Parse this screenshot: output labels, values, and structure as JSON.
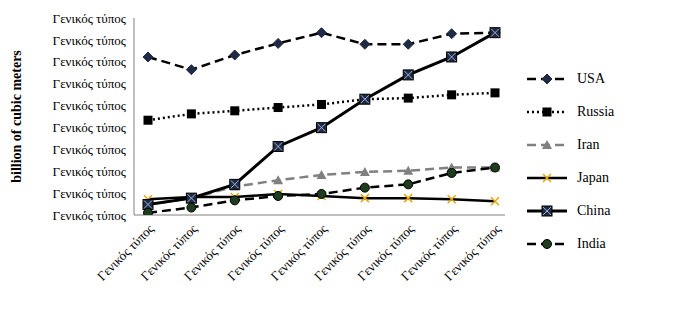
{
  "chart_data": {
    "type": "line",
    "y_label": "billion of cubic meters",
    "categories": [
      "Γενικός τύπος",
      "Γενικός τύπος",
      "Γενικός τύπος",
      "Γενικός τύπος",
      "Γενικός τύπος",
      "Γενικός τύπος",
      "Γενικός τύπος",
      "Γενικός τύπος",
      "Γενικός τύπος"
    ],
    "ylim": [
      0,
      900
    ],
    "yticks": [
      {
        "value": 0,
        "label": "Γενικός τύπος"
      },
      {
        "value": 100,
        "label": "Γενικός τύπος"
      },
      {
        "value": 200,
        "label": "Γενικός τύπος"
      },
      {
        "value": 300,
        "label": "Γενικός τύπος"
      },
      {
        "value": 400,
        "label": "Γενικός τύπος"
      },
      {
        "value": 500,
        "label": "Γενικός τύπος"
      },
      {
        "value": 600,
        "label": "Γενικός τύπος"
      },
      {
        "value": 700,
        "label": "Γενικός τύπος"
      },
      {
        "value": 800,
        "label": "Γενικός τύπος"
      },
      {
        "value": 900,
        "label": "Γενικός τύπος"
      }
    ],
    "grid": false,
    "legend": "right",
    "series": [
      {
        "name": "USA",
        "color": "#000000",
        "marker": "diamond",
        "line_style": "dashed",
        "values": [
          722,
          664,
          731,
          784,
          833,
          780,
          780,
          828,
          833
        ]
      },
      {
        "name": "Russia",
        "color": "#000000",
        "marker": "square",
        "line_style": "dotted",
        "values": [
          433,
          462,
          476,
          491,
          505,
          529,
          534,
          549,
          558
        ]
      },
      {
        "name": "Iran",
        "color": "#808080",
        "marker": "triangle",
        "line_style": "dashed",
        "values": [
          48,
          77,
          130,
          159,
          183,
          197,
          202,
          217,
          217
        ]
      },
      {
        "name": "Japan",
        "color": "#000000",
        "marker": "x",
        "line_style": "solid",
        "values": [
          72,
          82,
          82,
          96,
          87,
          77,
          77,
          72,
          63
        ]
      },
      {
        "name": "China",
        "color": "#000000",
        "marker": "square_x",
        "line_style": "solid",
        "values": [
          48,
          77,
          140,
          313,
          399,
          529,
          640,
          722,
          833
        ]
      },
      {
        "name": "India",
        "color": "#000000",
        "marker": "circle",
        "line_style": "dashed",
        "values": [
          10,
          34,
          67,
          87,
          96,
          125,
          140,
          192,
          217
        ]
      }
    ]
  }
}
